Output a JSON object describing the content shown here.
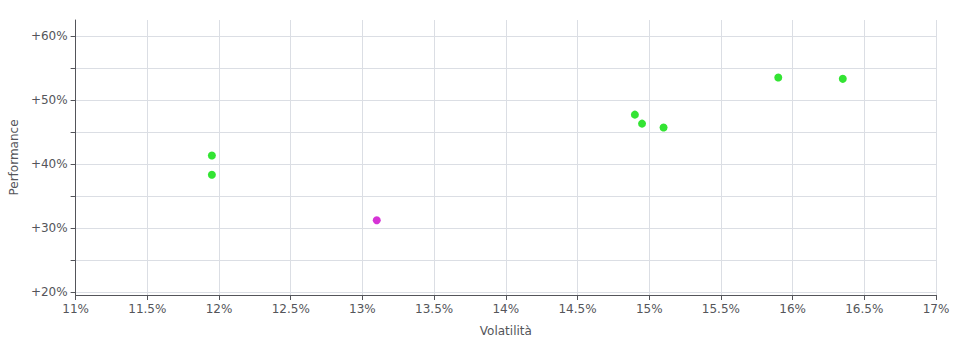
{
  "chart_data": {
    "type": "scatter",
    "xlabel": "Volatilità",
    "ylabel": "Performance",
    "xlim": [
      0.11,
      0.17
    ],
    "ylim": [
      0.195,
      0.625
    ],
    "xticks": [
      {
        "value": 0.11,
        "label": "11%"
      },
      {
        "value": 0.115,
        "label": "11.5%"
      },
      {
        "value": 0.12,
        "label": "12%"
      },
      {
        "value": 0.125,
        "label": "12.5%"
      },
      {
        "value": 0.13,
        "label": "13%"
      },
      {
        "value": 0.135,
        "label": "13.5%"
      },
      {
        "value": 0.14,
        "label": "14%"
      },
      {
        "value": 0.145,
        "label": "14.5%"
      },
      {
        "value": 0.15,
        "label": "15%"
      },
      {
        "value": 0.155,
        "label": "15.5%"
      },
      {
        "value": 0.16,
        "label": "16%"
      },
      {
        "value": 0.165,
        "label": "16.5%"
      },
      {
        "value": 0.17,
        "label": "17%"
      }
    ],
    "yticks": [
      {
        "value": 0.2,
        "label": "+20%"
      },
      {
        "value": 0.25,
        "label": ""
      },
      {
        "value": 0.3,
        "label": "+30%"
      },
      {
        "value": 0.35,
        "label": ""
      },
      {
        "value": 0.4,
        "label": "+40%"
      },
      {
        "value": 0.45,
        "label": ""
      },
      {
        "value": 0.5,
        "label": "+50%"
      },
      {
        "value": 0.55,
        "label": ""
      },
      {
        "value": 0.6,
        "label": "+60%"
      }
    ],
    "grid": true,
    "series": [
      {
        "color": "#00dd00",
        "x": [
          0.1195,
          0.1195,
          0.149,
          0.1495,
          0.151,
          0.159,
          0.1635
        ],
        "values": [
          0.413,
          0.383,
          0.477,
          0.463,
          0.457,
          0.535,
          0.533
        ]
      },
      {
        "color": "#cc00cc",
        "x": [
          0.131
        ],
        "values": [
          0.312
        ]
      }
    ]
  }
}
